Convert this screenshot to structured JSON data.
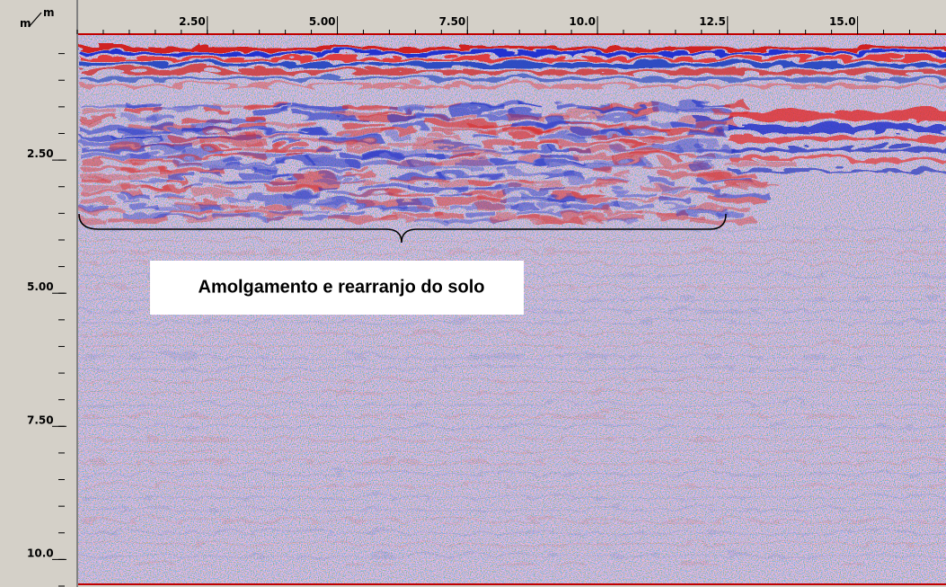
{
  "chart_data": {
    "type": "radargram",
    "x_unit": "m",
    "y_unit": "m",
    "annotation": "Amolgamento e rearranjo do solo",
    "xlim": [
      0,
      16.7
    ],
    "xticks": [
      {
        "value": 2.5,
        "label": "2.50"
      },
      {
        "value": 5,
        "label": "5.00"
      },
      {
        "value": 7.5,
        "label": "7.50"
      },
      {
        "value": 10,
        "label": "10.0"
      },
      {
        "value": 12.5,
        "label": "12.5"
      },
      {
        "value": 15,
        "label": "15.0"
      }
    ],
    "ylim": [
      0,
      10.5
    ],
    "yticks": [
      {
        "value": 2.5,
        "label": "2.50"
      },
      {
        "value": 5,
        "label": "5.00"
      },
      {
        "value": 7.5,
        "label": "7.50"
      },
      {
        "value": 10,
        "label": "10.0"
      }
    ]
  }
}
